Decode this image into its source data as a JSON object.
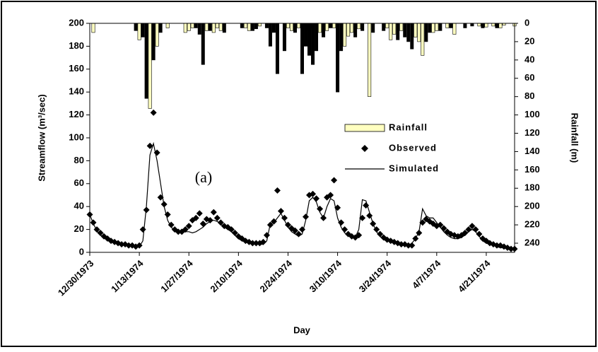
{
  "chart_data": {
    "type": "combo",
    "x_label": "Day",
    "y_label": "Streamflow (m³/sec)",
    "y2_label": "Rainfall (m)",
    "annotation": "(a)",
    "xlim": [
      0,
      120
    ],
    "xticks": [
      {
        "value": 0,
        "label": "12/30/1973"
      },
      {
        "value": 14,
        "label": "1/13/1974"
      },
      {
        "value": 28,
        "label": "1/27/1974"
      },
      {
        "value": 42,
        "label": "2/10/1974"
      },
      {
        "value": 56,
        "label": "2/24/1974"
      },
      {
        "value": 70,
        "label": "3/10/1974"
      },
      {
        "value": 84,
        "label": "3/24/1974"
      },
      {
        "value": 98,
        "label": "4/7/1974"
      },
      {
        "value": 112,
        "label": "4/21/1974"
      }
    ],
    "ylim": [
      0,
      200
    ],
    "yticks": [
      0,
      20,
      40,
      60,
      80,
      100,
      120,
      140,
      160,
      180,
      200
    ],
    "y2lim": [
      0,
      250
    ],
    "y2_inverted": true,
    "y2ticks": [
      0,
      20,
      40,
      60,
      80,
      100,
      120,
      140,
      160,
      180,
      200,
      220,
      240
    ],
    "x": [
      0,
      1,
      2,
      3,
      4,
      5,
      6,
      7,
      8,
      9,
      10,
      11,
      12,
      13,
      14,
      15,
      16,
      17,
      18,
      19,
      20,
      21,
      22,
      23,
      24,
      25,
      26,
      27,
      28,
      29,
      30,
      31,
      32,
      33,
      34,
      35,
      36,
      37,
      38,
      39,
      40,
      41,
      42,
      43,
      44,
      45,
      46,
      47,
      48,
      49,
      50,
      51,
      52,
      53,
      54,
      55,
      56,
      57,
      58,
      59,
      60,
      61,
      62,
      63,
      64,
      65,
      66,
      67,
      68,
      69,
      70,
      71,
      72,
      73,
      74,
      75,
      76,
      77,
      78,
      79,
      80,
      81,
      82,
      83,
      84,
      85,
      86,
      87,
      88,
      89,
      90,
      91,
      92,
      93,
      94,
      95,
      96,
      97,
      98,
      99,
      100,
      101,
      102,
      103,
      104,
      105,
      106,
      107,
      108,
      109,
      110,
      111,
      112,
      113,
      114,
      115,
      116,
      117,
      118,
      119,
      120
    ],
    "series": [
      {
        "name": "Rainfall",
        "type": "bar",
        "axis": "y2",
        "color": "#ffffc0",
        "x": [
          1,
          14,
          17,
          19,
          22,
          27,
          28,
          29,
          33,
          35,
          36,
          37,
          44,
          45,
          48,
          56,
          57,
          59,
          62,
          63,
          65,
          67,
          69,
          72,
          73,
          74,
          76,
          79,
          84,
          85,
          86,
          88,
          92,
          93,
          94,
          97,
          98,
          101,
          103,
          110,
          112,
          114,
          116,
          117,
          120
        ],
        "values": [
          10,
          18,
          93,
          25,
          5,
          10,
          8,
          5,
          8,
          10,
          5,
          8,
          5,
          8,
          3,
          5,
          8,
          5,
          8,
          5,
          10,
          8,
          5,
          25,
          14,
          10,
          6,
          80,
          5,
          18,
          12,
          8,
          15,
          20,
          35,
          10,
          8,
          5,
          12,
          3,
          4,
          3,
          5,
          2,
          3
        ]
      },
      {
        "type": "bar",
        "axis": "y2",
        "color": "#000000",
        "x": [
          13,
          15,
          16,
          18,
          20,
          30,
          31,
          32,
          34,
          38,
          43,
          46,
          47,
          50,
          51,
          52,
          53,
          55,
          58,
          60,
          61,
          62,
          63,
          64,
          66,
          68,
          70,
          71,
          75,
          77,
          80,
          83,
          87,
          89,
          90,
          91,
          95,
          96,
          99,
          102,
          106,
          108,
          111,
          115
        ],
        "values": [
          8,
          15,
          82,
          40,
          10,
          5,
          12,
          45,
          8,
          10,
          5,
          8,
          6,
          5,
          25,
          10,
          55,
          30,
          10,
          55,
          25,
          35,
          45,
          30,
          15,
          5,
          75,
          30,
          15,
          8,
          10,
          8,
          18,
          15,
          20,
          28,
          20,
          10,
          8,
          5,
          5,
          3,
          5,
          5
        ]
      },
      {
        "name": "Observed",
        "type": "scatter",
        "color": "#000000",
        "values": [
          33,
          26,
          20,
          17,
          14,
          12,
          10,
          9,
          8,
          7,
          7,
          6,
          6,
          5,
          6,
          20,
          37,
          93,
          122,
          87,
          48,
          42,
          33,
          24,
          20,
          18,
          18,
          20,
          23,
          28,
          30,
          34,
          25,
          29,
          28,
          35,
          30,
          26,
          23,
          22,
          20,
          17,
          14,
          12,
          10,
          9,
          8,
          8,
          8,
          9,
          15,
          24,
          27,
          54,
          36,
          30,
          24,
          21,
          19,
          16,
          20,
          31,
          50,
          51,
          47,
          38,
          30,
          48,
          50,
          63,
          39,
          26,
          20,
          16,
          14,
          13,
          15,
          30,
          41,
          32,
          25,
          20,
          16,
          13,
          11,
          10,
          9,
          8,
          7,
          7,
          6,
          6,
          12,
          17,
          26,
          29,
          27,
          25,
          23,
          24,
          21,
          18,
          16,
          15,
          14,
          15,
          17,
          20,
          23,
          20,
          16,
          12,
          10,
          8,
          7,
          6,
          6,
          5,
          4,
          3,
          3
        ]
      },
      {
        "name": "Simulated",
        "type": "line",
        "color": "#000000",
        "values": [
          33,
          25,
          19,
          15,
          13,
          11,
          9,
          8,
          7,
          7,
          6,
          6,
          5,
          5,
          5,
          10,
          40,
          85,
          95,
          80,
          60,
          40,
          28,
          22,
          19,
          17,
          17,
          18,
          18,
          17,
          18,
          20,
          22,
          25,
          27,
          28,
          27,
          25,
          22,
          20,
          18,
          15,
          12,
          10,
          9,
          8,
          8,
          7,
          7,
          7,
          10,
          25,
          26,
          30,
          34,
          28,
          22,
          18,
          16,
          14,
          16,
          28,
          45,
          48,
          44,
          35,
          30,
          40,
          47,
          45,
          30,
          22,
          17,
          15,
          14,
          13,
          20,
          46,
          45,
          35,
          25,
          18,
          14,
          11,
          10,
          9,
          8,
          7,
          6,
          6,
          6,
          8,
          12,
          18,
          38,
          32,
          30,
          30,
          26,
          22,
          18,
          15,
          13,
          12,
          12,
          13,
          15,
          18,
          20,
          18,
          14,
          10,
          8,
          7,
          6,
          5,
          4,
          4,
          3,
          3,
          2
        ]
      }
    ]
  }
}
